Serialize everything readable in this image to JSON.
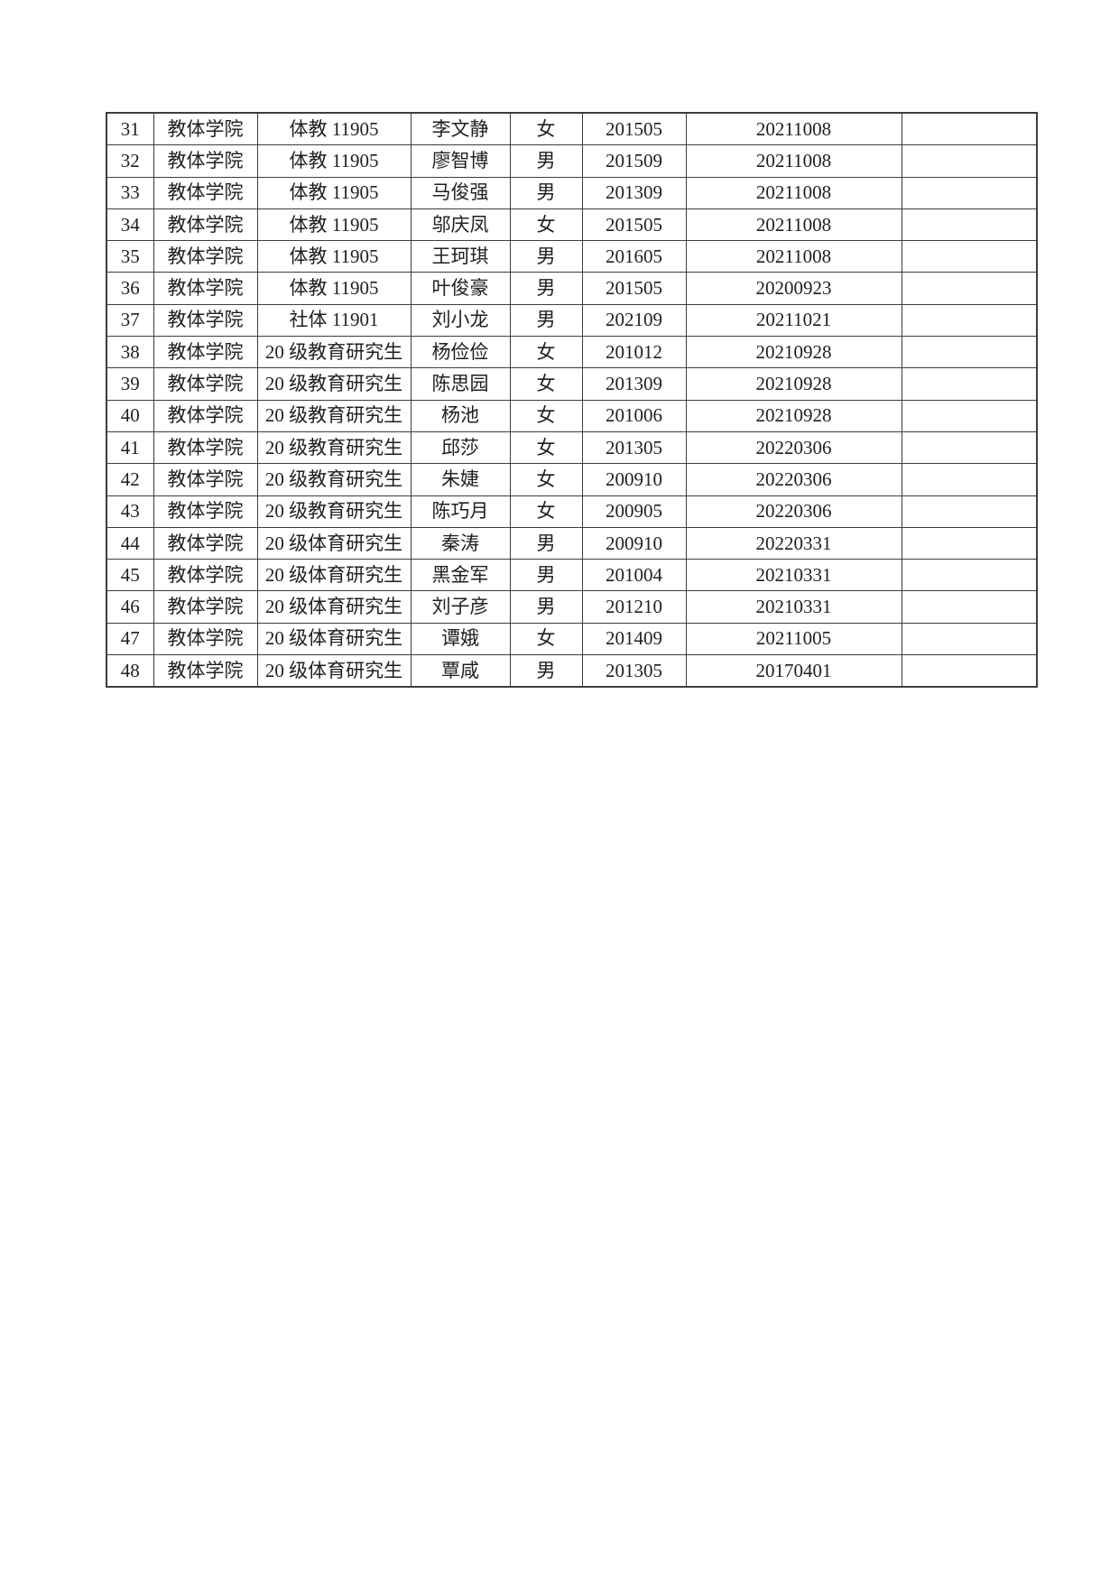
{
  "colors": {
    "background": "#ffffff",
    "text": "#1f1f1f",
    "grid": "#3d3d3d"
  },
  "table": {
    "rows": [
      {
        "no": "31",
        "college": "教体学院",
        "class": "体教 11905",
        "name": "李文静",
        "gender": "女",
        "code": "201505",
        "date": "20211008",
        "note": ""
      },
      {
        "no": "32",
        "college": "教体学院",
        "class": "体教 11905",
        "name": "廖智博",
        "gender": "男",
        "code": "201509",
        "date": "20211008",
        "note": ""
      },
      {
        "no": "33",
        "college": "教体学院",
        "class": "体教 11905",
        "name": "马俊强",
        "gender": "男",
        "code": "201309",
        "date": "20211008",
        "note": ""
      },
      {
        "no": "34",
        "college": "教体学院",
        "class": "体教 11905",
        "name": "邬庆凤",
        "gender": "女",
        "code": "201505",
        "date": "20211008",
        "note": ""
      },
      {
        "no": "35",
        "college": "教体学院",
        "class": "体教 11905",
        "name": "王珂琪",
        "gender": "男",
        "code": "201605",
        "date": "20211008",
        "note": ""
      },
      {
        "no": "36",
        "college": "教体学院",
        "class": "体教 11905",
        "name": "叶俊豪",
        "gender": "男",
        "code": "201505",
        "date": "20200923",
        "note": ""
      },
      {
        "no": "37",
        "college": "教体学院",
        "class": "社体 11901",
        "name": "刘小龙",
        "gender": "男",
        "code": "202109",
        "date": "20211021",
        "note": ""
      },
      {
        "no": "38",
        "college": "教体学院",
        "class": "20 级教育研究生",
        "name": "杨俭俭",
        "gender": "女",
        "code": "201012",
        "date": "20210928",
        "note": ""
      },
      {
        "no": "39",
        "college": "教体学院",
        "class": "20 级教育研究生",
        "name": "陈思园",
        "gender": "女",
        "code": "201309",
        "date": "20210928",
        "note": ""
      },
      {
        "no": "40",
        "college": "教体学院",
        "class": "20 级教育研究生",
        "name": "杨池",
        "gender": "女",
        "code": "201006",
        "date": "20210928",
        "note": ""
      },
      {
        "no": "41",
        "college": "教体学院",
        "class": "20 级教育研究生",
        "name": "邱莎",
        "gender": "女",
        "code": "201305",
        "date": "20220306",
        "note": ""
      },
      {
        "no": "42",
        "college": "教体学院",
        "class": "20 级教育研究生",
        "name": "朱婕",
        "gender": "女",
        "code": "200910",
        "date": "20220306",
        "note": ""
      },
      {
        "no": "43",
        "college": "教体学院",
        "class": "20 级教育研究生",
        "name": "陈巧月",
        "gender": "女",
        "code": "200905",
        "date": "20220306",
        "note": ""
      },
      {
        "no": "44",
        "college": "教体学院",
        "class": "20 级体育研究生",
        "name": "秦涛",
        "gender": "男",
        "code": "200910",
        "date": "20220331",
        "note": ""
      },
      {
        "no": "45",
        "college": "教体学院",
        "class": "20 级体育研究生",
        "name": "黑金军",
        "gender": "男",
        "code": "201004",
        "date": "20210331",
        "note": ""
      },
      {
        "no": "46",
        "college": "教体学院",
        "class": "20 级体育研究生",
        "name": "刘子彦",
        "gender": "男",
        "code": "201210",
        "date": "20210331",
        "note": ""
      },
      {
        "no": "47",
        "college": "教体学院",
        "class": "20 级体育研究生",
        "name": "谭娥",
        "gender": "女",
        "code": "201409",
        "date": "20211005",
        "note": ""
      },
      {
        "no": "48",
        "college": "教体学院",
        "class": "20 级体育研究生",
        "name": "覃咸",
        "gender": "男",
        "code": "201305",
        "date": "20170401",
        "note": ""
      }
    ]
  }
}
